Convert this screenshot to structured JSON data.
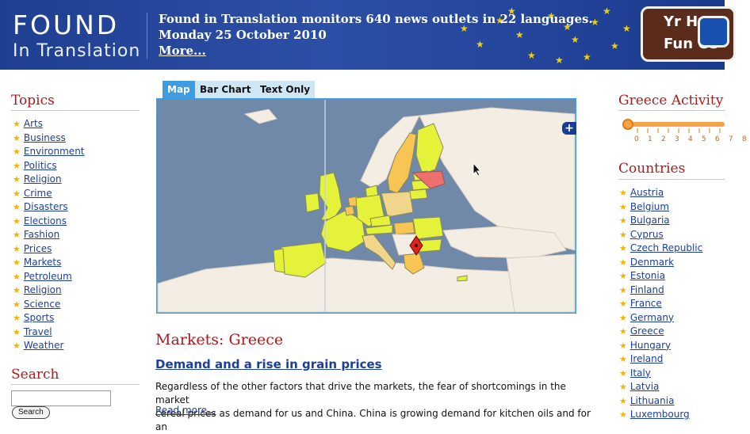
{
  "header": {
    "logo_line1": "FOUND",
    "logo_line2": "In Translation",
    "tagline": "Found in Translation monitors 640 news outlets in 22 languages.",
    "date": "Monday 25 October 2010",
    "more_link": "More...",
    "sign_text_1": "Yr Hw",
    "sign_text_2": "Fun Ce"
  },
  "sidebar": {
    "topics_title": "Topics",
    "topics": [
      "Arts",
      "Business",
      "Environment",
      "Politics",
      "Religion",
      "Crime",
      "Disasters",
      "Elections",
      "Fashion",
      "Prices",
      "Markets",
      "Petroleum",
      "Religion",
      "Science",
      "Sports",
      "Travel",
      "Weather"
    ],
    "search_title": "Search",
    "search_value": "",
    "search_button": "Search"
  },
  "tabs": [
    {
      "label": "Map",
      "active": true
    },
    {
      "label": "Bar Chart",
      "active": false
    },
    {
      "label": "Text Only",
      "active": false
    }
  ],
  "map": {
    "zoom_button": "+",
    "highlighted_country": "Greece",
    "colors": {
      "sea": "#7189a8",
      "yellow": "#e4f23a",
      "orange": "#f8c555",
      "pale": "#f0d68a",
      "red": "#ef6f6f",
      "land": "#f4ede4"
    }
  },
  "article": {
    "section_heading": "Markets: Greece",
    "headline": "Demand and a rise in grain prices",
    "body_line1": "Regardless of the other factors that drive the markets, the fear of shortcomings in the market",
    "body_line2": "cereal prices as demand for us and China. China is growing demand for kitchen oils and for an",
    "read_more": "Read more..."
  },
  "right": {
    "activity_title": "Greece Activity",
    "activity_ticks": "0 1 2 3 4 5 6 7 8",
    "activity_value": 0,
    "countries_title": "Countries",
    "countries": [
      "Austria",
      "Belgium",
      "Bulgaria",
      "Cyprus",
      "Czech Republic",
      "Denmark",
      "Estonia",
      "Finland",
      "France",
      "Germany",
      "Greece",
      "Hungary",
      "Ireland",
      "Italy",
      "Latvia",
      "Lithuania",
      "Luxembourg"
    ]
  },
  "accent_colors": {
    "brand_blue": "#2c4fa6",
    "heading_red": "#b0181a",
    "link_blue": "#1d3f9a",
    "tab_blue": "#3d9de0",
    "star_yellow": "#f2b400"
  }
}
